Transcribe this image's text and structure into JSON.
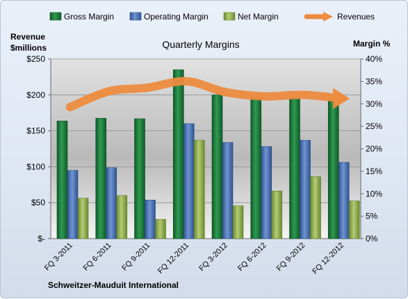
{
  "chart_data": {
    "type": "bar",
    "title": "Quarterly Margins",
    "footer": "Schweitzer-Mauduit International",
    "left_axis": {
      "label_line1": "Revenue",
      "label_line2": "$millions",
      "ylim": [
        0,
        250
      ],
      "ticks": [
        0,
        50,
        100,
        150,
        200,
        250
      ],
      "tick_labels": [
        "$-",
        "$50",
        "$100",
        "$150",
        "$200",
        "$250"
      ]
    },
    "right_axis": {
      "label": "Margin %",
      "ylim": [
        0,
        40
      ],
      "ticks": [
        0,
        5,
        10,
        15,
        20,
        25,
        30,
        35,
        40
      ],
      "tick_labels": [
        "0%",
        "5%",
        "10%",
        "15%",
        "20%",
        "25%",
        "30%",
        "35%",
        "40%"
      ]
    },
    "categories": [
      "FQ 3-2011",
      "FQ 6-2011",
      "FQ 9-2011",
      "FQ 12-2011",
      "FQ 3-2012",
      "FQ 6-2012",
      "FQ 9-2012",
      "FQ 12-2012"
    ],
    "series": [
      {
        "name": "Gross Margin",
        "axis": "right",
        "color": "#1e7a3c",
        "values": [
          26.2,
          26.8,
          26.7,
          37.6,
          32.0,
          31.5,
          31.5,
          31.2
        ]
      },
      {
        "name": "Operating Margin",
        "axis": "right",
        "color": "#4a74b8",
        "values": [
          15.2,
          15.8,
          8.6,
          25.6,
          21.4,
          20.5,
          21.9,
          17.0
        ]
      },
      {
        "name": "Net Margin",
        "axis": "right",
        "color": "#8fae4a",
        "values": [
          9.0,
          9.6,
          4.3,
          21.9,
          7.3,
          10.6,
          13.8,
          8.4
        ]
      },
      {
        "name": "Revenues",
        "axis": "left",
        "type": "line",
        "color": "#ed8b3f",
        "values": [
          183,
          205,
          210,
          219,
          204,
          198,
          200,
          195
        ]
      }
    ],
    "legend": {
      "placement": "top"
    },
    "grid": true
  }
}
